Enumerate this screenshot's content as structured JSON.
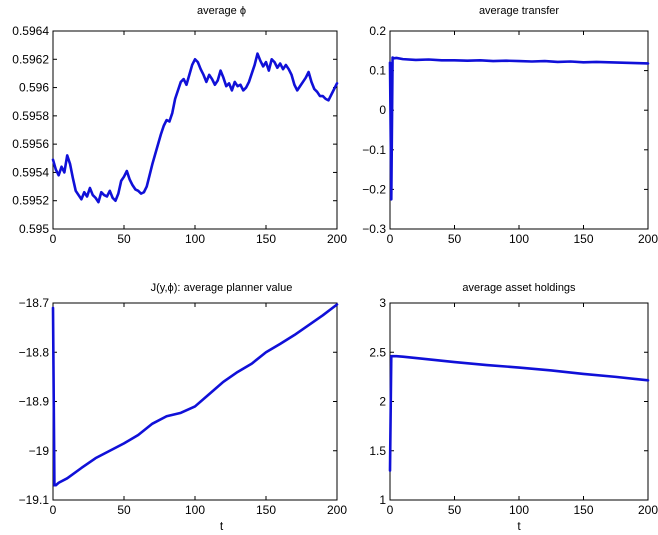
{
  "chart_data": [
    {
      "type": "line",
      "title": "average ϕ",
      "xlabel": "",
      "ylabel": "",
      "xlim": [
        0,
        200
      ],
      "ylim": [
        0.595,
        0.5964
      ],
      "xticks": [
        0,
        50,
        100,
        150,
        200
      ],
      "xtick_labels": [
        "0",
        "50",
        "100",
        "150",
        "200"
      ],
      "yticks": [
        0.595,
        0.5952,
        0.5954,
        0.5956,
        0.5958,
        0.596,
        0.5962,
        0.5964
      ],
      "ytick_labels": [
        "0.595",
        "0.5952",
        "0.5954",
        "0.5956",
        "0.5958",
        "0.596",
        "0.5962",
        "0.5964"
      ],
      "grid": false,
      "color": "#1010d8",
      "series": [
        {
          "x": [
            0,
            2,
            4,
            6,
            8,
            10,
            12,
            14,
            16,
            18,
            20,
            22,
            24,
            26,
            28,
            30,
            32,
            34,
            36,
            38,
            40,
            42,
            44,
            46,
            48,
            50,
            52,
            54,
            56,
            58,
            60,
            62,
            64,
            66,
            68,
            70,
            72,
            74,
            76,
            78,
            80,
            82,
            84,
            86,
            88,
            90,
            92,
            94,
            96,
            98,
            100,
            102,
            104,
            106,
            108,
            110,
            112,
            114,
            116,
            118,
            120,
            122,
            124,
            126,
            128,
            130,
            132,
            134,
            136,
            138,
            140,
            142,
            144,
            146,
            148,
            150,
            152,
            154,
            156,
            158,
            160,
            162,
            164,
            166,
            168,
            170,
            172,
            174,
            176,
            178,
            180,
            182,
            184,
            186,
            188,
            190,
            192,
            194,
            196,
            198,
            200
          ],
          "y": [
            0.59549,
            0.59542,
            0.59538,
            0.59544,
            0.5954,
            0.59552,
            0.59546,
            0.59536,
            0.59527,
            0.59524,
            0.59521,
            0.59526,
            0.59523,
            0.59529,
            0.59524,
            0.59522,
            0.59519,
            0.59526,
            0.59524,
            0.59523,
            0.59527,
            0.59522,
            0.5952,
            0.59525,
            0.59534,
            0.59537,
            0.59541,
            0.59535,
            0.59531,
            0.59528,
            0.59527,
            0.59525,
            0.59526,
            0.5953,
            0.59538,
            0.59546,
            0.59553,
            0.5956,
            0.59567,
            0.59573,
            0.59577,
            0.59576,
            0.59582,
            0.59592,
            0.59598,
            0.59604,
            0.59606,
            0.59602,
            0.59609,
            0.59616,
            0.5962,
            0.59618,
            0.59613,
            0.59609,
            0.59604,
            0.59609,
            0.59606,
            0.59602,
            0.59605,
            0.59612,
            0.59607,
            0.59601,
            0.59603,
            0.59598,
            0.59604,
            0.59601,
            0.59602,
            0.59598,
            0.596,
            0.59604,
            0.5961,
            0.59616,
            0.59624,
            0.59619,
            0.59615,
            0.59618,
            0.59612,
            0.5962,
            0.59618,
            0.59614,
            0.59617,
            0.59613,
            0.59616,
            0.59613,
            0.59609,
            0.59602,
            0.59598,
            0.59601,
            0.59604,
            0.59607,
            0.59611,
            0.59604,
            0.59599,
            0.59597,
            0.59594,
            0.59594,
            0.59592,
            0.59591,
            0.59595,
            0.59599,
            0.59603
          ]
        }
      ]
    },
    {
      "type": "line",
      "title": "average transfer",
      "xlabel": "",
      "ylabel": "",
      "xlim": [
        0,
        200
      ],
      "ylim": [
        -0.3,
        0.2
      ],
      "xticks": [
        0,
        50,
        100,
        150,
        200
      ],
      "xtick_labels": [
        "0",
        "50",
        "100",
        "150",
        "200"
      ],
      "yticks": [
        -0.3,
        -0.2,
        -0.1,
        0,
        0.1,
        0.2
      ],
      "ytick_labels": [
        "−0.3",
        "−0.2",
        "−0.1",
        "0",
        "0.1",
        "0.2"
      ],
      "grid": false,
      "color": "#1010d8",
      "series": [
        {
          "x": [
            0,
            1,
            2,
            3,
            5,
            10,
            20,
            30,
            40,
            50,
            60,
            70,
            80,
            90,
            100,
            110,
            120,
            130,
            140,
            150,
            160,
            170,
            180,
            190,
            200
          ],
          "y": [
            0.12,
            -0.225,
            0.133,
            0.131,
            0.132,
            0.129,
            0.127,
            0.128,
            0.126,
            0.126,
            0.125,
            0.126,
            0.124,
            0.125,
            0.124,
            0.123,
            0.124,
            0.122,
            0.123,
            0.121,
            0.122,
            0.121,
            0.12,
            0.119,
            0.118
          ]
        }
      ]
    },
    {
      "type": "line",
      "title": "J(y,ϕ): average planner value",
      "xlabel": "t",
      "ylabel": "",
      "xlim": [
        0,
        200
      ],
      "ylim": [
        -19.1,
        -18.7
      ],
      "xticks": [
        0,
        50,
        100,
        150,
        200
      ],
      "xtick_labels": [
        "0",
        "50",
        "100",
        "150",
        "200"
      ],
      "yticks": [
        -19.1,
        -19,
        -18.9,
        -18.8,
        -18.7
      ],
      "ytick_labels": [
        "−19.1",
        "−19",
        "−18.9",
        "−18.8",
        "−18.7"
      ],
      "grid": false,
      "color": "#1010d8",
      "series": [
        {
          "x": [
            0,
            1,
            2,
            4,
            10,
            20,
            30,
            40,
            50,
            60,
            70,
            80,
            90,
            100,
            110,
            120,
            130,
            140,
            150,
            160,
            170,
            180,
            190,
            200
          ],
          "y": [
            -18.71,
            -19.07,
            -19.07,
            -19.065,
            -19.056,
            -19.035,
            -19.015,
            -19.0,
            -18.985,
            -18.968,
            -18.945,
            -18.93,
            -18.923,
            -18.91,
            -18.885,
            -18.86,
            -18.84,
            -18.823,
            -18.8,
            -18.783,
            -18.765,
            -18.745,
            -18.725,
            -18.703
          ]
        }
      ]
    },
    {
      "type": "line",
      "title": "average asset holdings",
      "xlabel": "t",
      "ylabel": "",
      "xlim": [
        0,
        200
      ],
      "ylim": [
        1,
        3
      ],
      "xticks": [
        0,
        50,
        100,
        150,
        200
      ],
      "xtick_labels": [
        "0",
        "50",
        "100",
        "150",
        "200"
      ],
      "yticks": [
        1,
        1.5,
        2,
        2.5,
        3
      ],
      "ytick_labels": [
        "1",
        "1.5",
        "2",
        "2.5",
        "3"
      ],
      "grid": false,
      "color": "#1010d8",
      "series": [
        {
          "x": [
            0,
            1,
            2,
            5,
            10,
            25,
            50,
            75,
            100,
            125,
            150,
            175,
            200
          ],
          "y": [
            1.3,
            2.46,
            2.46,
            2.46,
            2.455,
            2.435,
            2.4,
            2.37,
            2.345,
            2.315,
            2.28,
            2.25,
            2.215
          ]
        }
      ]
    }
  ]
}
